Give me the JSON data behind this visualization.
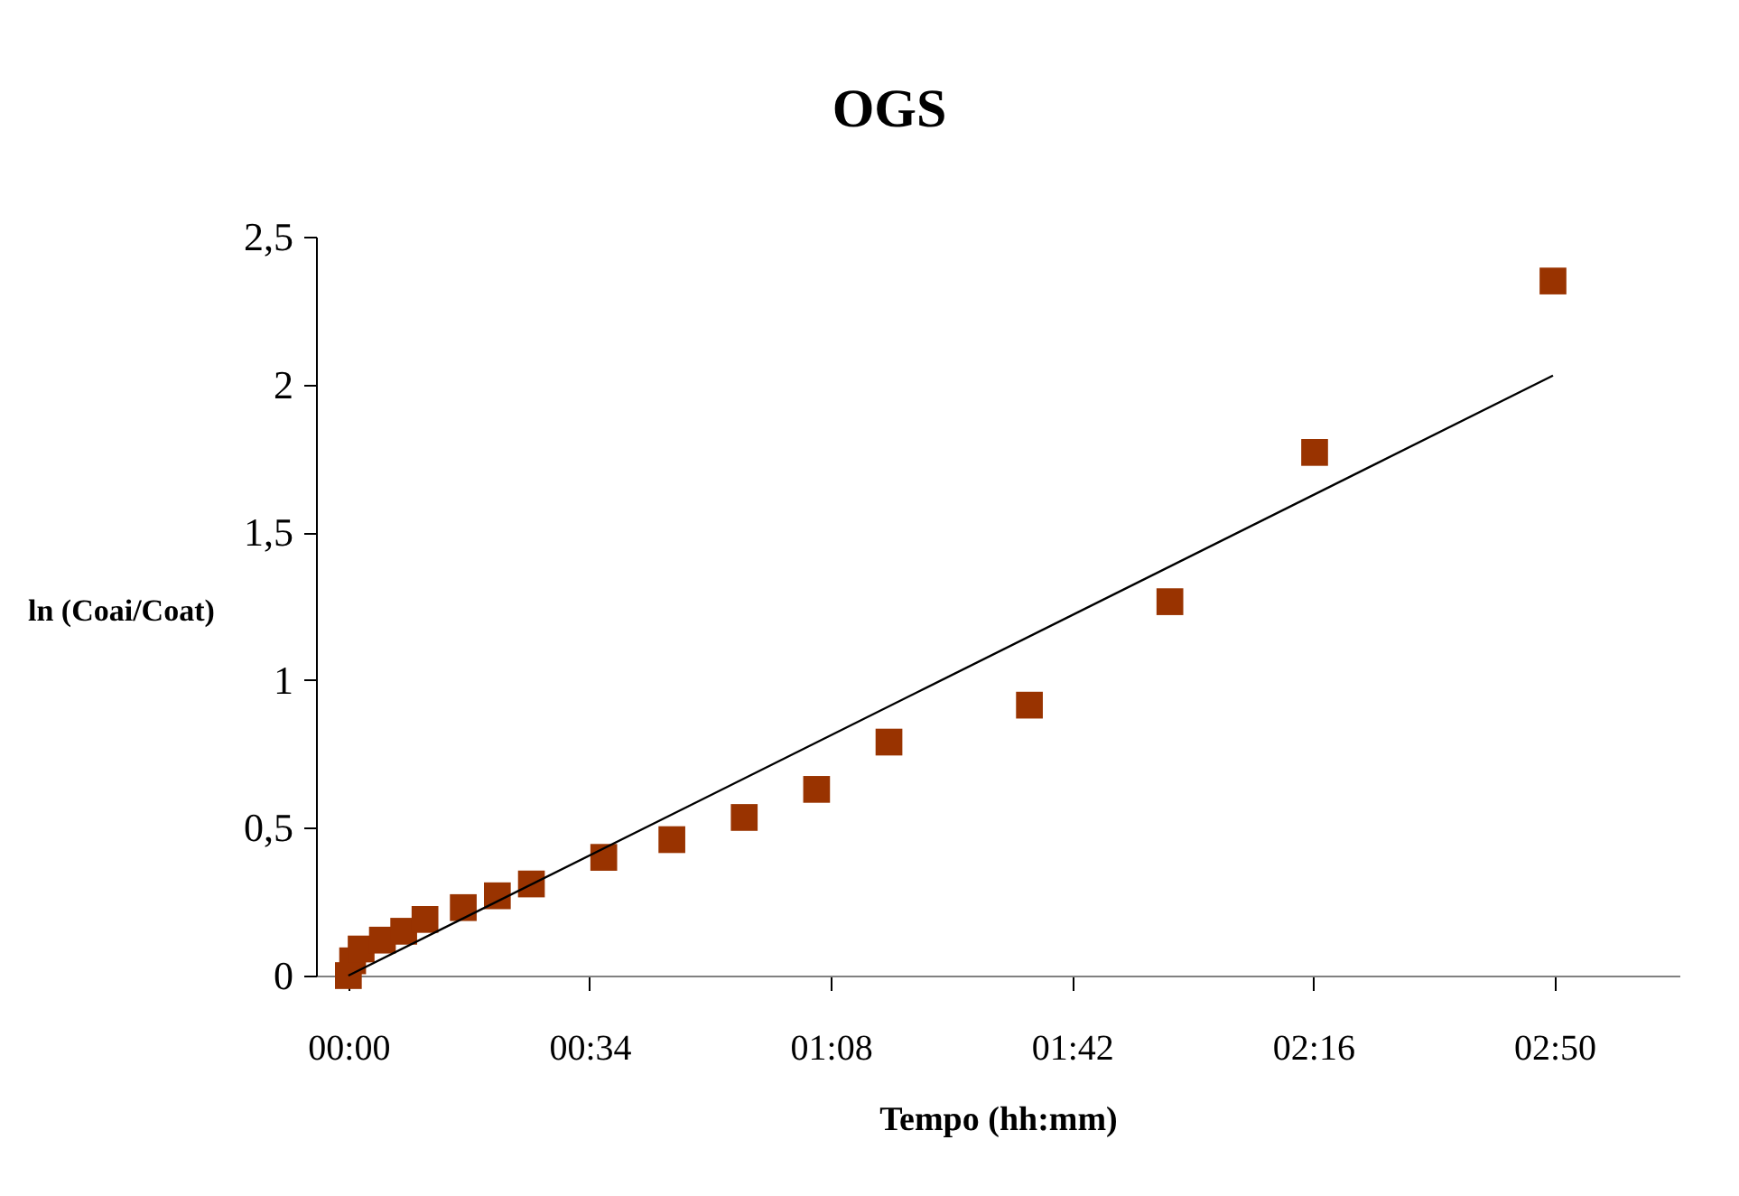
{
  "chart_data": {
    "type": "scatter",
    "title": "OGS",
    "xlabel": "Tempo (hh:mm)",
    "ylabel": "ln (Coai/Coat)",
    "xlim": [
      -0.076,
      3.127
    ],
    "ylim": [
      0,
      2.5
    ],
    "xticks": [
      {
        "value": 0,
        "label": "00:00"
      },
      {
        "value": 0.5667,
        "label": "00:34"
      },
      {
        "value": 1.1333,
        "label": "01:08"
      },
      {
        "value": 1.7,
        "label": "01:42"
      },
      {
        "value": 2.2667,
        "label": "02:16"
      },
      {
        "value": 2.8333,
        "label": "02:50"
      }
    ],
    "yticks": [
      0,
      {
        "value": 0.5,
        "label": "0,5"
      },
      1,
      {
        "value": 1.5,
        "label": "1,5"
      },
      2,
      {
        "value": 2.5,
        "label": "2,5"
      }
    ],
    "grid": false,
    "series": [
      {
        "color": "#993300",
        "marker": "square",
        "x": [
          0,
          0.01,
          0.03,
          0.08,
          0.13,
          0.18,
          0.27,
          0.35,
          0.43,
          0.6,
          0.76,
          0.93,
          1.1,
          1.27,
          1.6,
          1.93,
          2.27,
          2.83
        ],
        "values": [
          0,
          0.05,
          0.09,
          0.12,
          0.15,
          0.19,
          0.23,
          0.27,
          0.31,
          0.4,
          0.46,
          0.535,
          0.63,
          0.79,
          0.915,
          1.265,
          1.77,
          2.35
        ]
      },
      {
        "type": "line",
        "color": "#000000",
        "marker": "none",
        "line_style": "solid",
        "x": [
          0,
          2.83
        ],
        "values": [
          0,
          2.03
        ]
      }
    ]
  }
}
